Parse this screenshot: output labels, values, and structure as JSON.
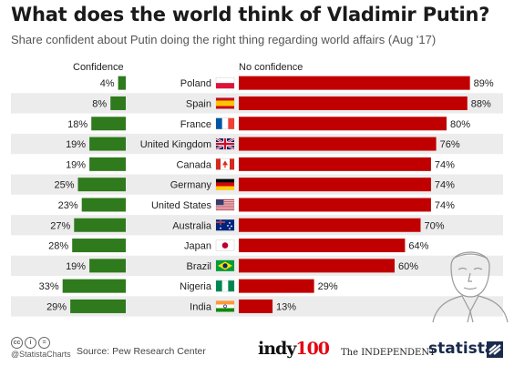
{
  "title": "What does the world think of Vladimir Putin?",
  "subtitle": "Share confident about Putin doing the right thing regarding world affairs (Aug '17)",
  "colors": {
    "confidence": "#2f7a1c",
    "no_confidence": "#c00000",
    "row_stripe": "#ececec"
  },
  "chart_data": {
    "type": "bar",
    "title": "What does the world think of Vladimir Putin?",
    "subtitle": "Share confident about Putin doing the right thing regarding world affairs (Aug '17)",
    "categories": [
      "Poland",
      "Spain",
      "France",
      "United Kingdom",
      "Canada",
      "Germany",
      "United States",
      "Australia",
      "Japan",
      "Brazil",
      "Nigeria",
      "India"
    ],
    "series": [
      {
        "name": "Confidence",
        "values": [
          4,
          8,
          18,
          19,
          19,
          25,
          23,
          27,
          28,
          19,
          33,
          29
        ]
      },
      {
        "name": "No confidence",
        "values": [
          89,
          88,
          80,
          76,
          74,
          74,
          74,
          70,
          64,
          60,
          29,
          13
        ]
      }
    ],
    "value_suffix": "%",
    "flags": [
      "poland-flag",
      "spain-flag",
      "france-flag",
      "uk-flag",
      "canada-flag",
      "germany-flag",
      "usa-flag",
      "australia-flag",
      "japan-flag",
      "brazil-flag",
      "nigeria-flag",
      "india-flag"
    ]
  },
  "footer": {
    "handle": "@StatistaCharts",
    "source": "Source: Pew Research Center",
    "logo_indy_text": "indy",
    "logo_indy_num": "100",
    "logo_independent": "The INDEPENDENT",
    "logo_statista": "statista"
  }
}
